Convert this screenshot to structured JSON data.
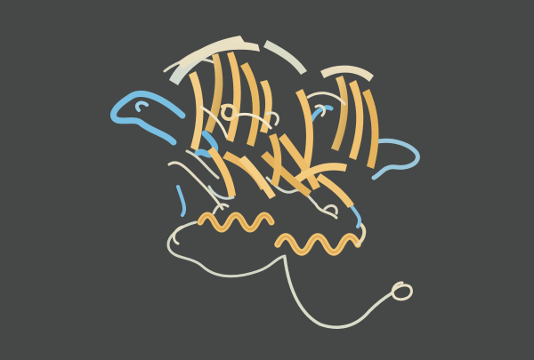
{
  "viewer": {
    "background": "#464847",
    "render_style": "cartoon ribbon",
    "palette": {
      "strand_gold": "#f2c472",
      "strand_gold_dark": "#c99a47",
      "coil_cream": "#e6dcc0",
      "coil_pale": "#cfd8cf",
      "loop_blue": "#7cc0e2",
      "loop_blue_dark": "#4f9ec9"
    }
  }
}
